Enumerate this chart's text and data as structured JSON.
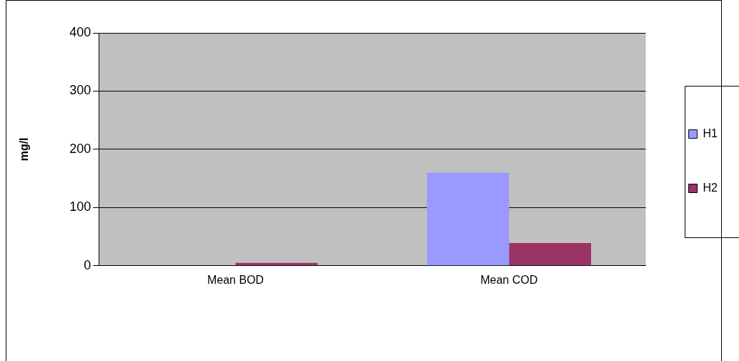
{
  "chart_data": {
    "type": "bar",
    "ylabel": "mg/l",
    "categories": [
      "Mean BOD",
      "Mean COD"
    ],
    "series": [
      {
        "name": "H1",
        "color": "#9999ff",
        "values": [
          0,
          160
        ]
      },
      {
        "name": "H2",
        "color": "#993366",
        "values": [
          5,
          39
        ]
      }
    ],
    "ylim": [
      0,
      400
    ],
    "yticks": [
      0,
      100,
      200,
      300,
      400
    ],
    "grid": "y",
    "legend": "right"
  }
}
